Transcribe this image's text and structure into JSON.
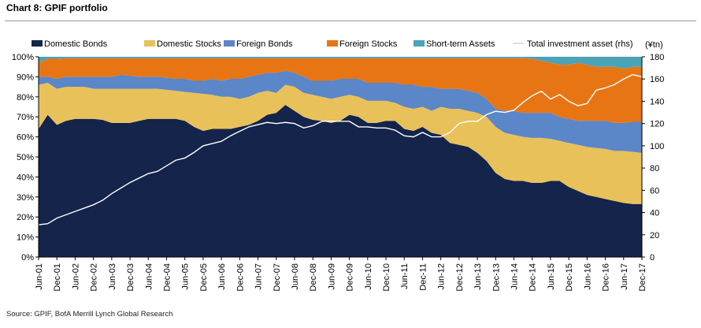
{
  "header": {
    "title": "Chart 8: GPIF portfolio",
    "source": "Source: GPIF, BofA Merrill Lynch Global Research"
  },
  "chart_data": {
    "type": "area",
    "title": "Chart 8: GPIF portfolio",
    "stacked": true,
    "x_tick_labels": [
      "Jun-01",
      "Dec-01",
      "Jun-02",
      "Dec-02",
      "Jun-03",
      "Dec-03",
      "Jun-04",
      "Dec-04",
      "Jun-05",
      "Dec-05",
      "Jun-06",
      "Dec-06",
      "Jun-07",
      "Dec-07",
      "Jun-08",
      "Dec-08",
      "Jun-09",
      "Dec-09",
      "Jun-10",
      "Dec-10",
      "Jun-11",
      "Dec-11",
      "Jun-12",
      "Dec-12",
      "Jun-13",
      "Dec-13",
      "Jun-14",
      "Dec-14",
      "Jun-15",
      "Dec-15",
      "Jun-16",
      "Dec-16",
      "Jun-17",
      "Dec-17"
    ],
    "x_quarter_count": 67,
    "y_left": {
      "min": 0,
      "max": 100,
      "step": 10,
      "tick_suffix": "%"
    },
    "y_right": {
      "min": 0,
      "max": 180,
      "step": 20,
      "unit_label": "(¥tn)"
    },
    "series": [
      {
        "name": "Domestic Bonds",
        "axis": "left",
        "color": "#14244a",
        "values": [
          64,
          71,
          66,
          68,
          69,
          69,
          69,
          68.5,
          67,
          67,
          67,
          68,
          69,
          69,
          69,
          69,
          68,
          65,
          63,
          64,
          64,
          64,
          65,
          66,
          68,
          71,
          72,
          76,
          73,
          70,
          68.5,
          68,
          67,
          68,
          71,
          70,
          67,
          67,
          68,
          68,
          64,
          63,
          65,
          62,
          61,
          57,
          56,
          55,
          52,
          48,
          42,
          39,
          38,
          38,
          37,
          37,
          38,
          38,
          35,
          33,
          31,
          30,
          29,
          28,
          27,
          26.5,
          26.5
        ]
      },
      {
        "name": "Domestic Stocks",
        "axis": "left",
        "color": "#e8c15a",
        "values": [
          86,
          87,
          84,
          85,
          85,
          85,
          84,
          84,
          84,
          84,
          84,
          84,
          84,
          84,
          83.5,
          83,
          82.5,
          82,
          81.5,
          81,
          80,
          80,
          79,
          80,
          82,
          83,
          82,
          86,
          85,
          82,
          81,
          80,
          79,
          80,
          81,
          80,
          78,
          78,
          78,
          77,
          75,
          74,
          75,
          73,
          75,
          74,
          74,
          73,
          72,
          70,
          65,
          62,
          61,
          60,
          59.5,
          59.5,
          59,
          58,
          57,
          56,
          55,
          54.5,
          54,
          53,
          53,
          52.5,
          52
        ]
      },
      {
        "name": "Foreign Bonds",
        "axis": "left",
        "color": "#5b86c7",
        "values": [
          90,
          90,
          89,
          90,
          90,
          90,
          90,
          90,
          90,
          91,
          90.5,
          90,
          90,
          90,
          89.5,
          89,
          89,
          88,
          88,
          89,
          88,
          89,
          89,
          90,
          91,
          92,
          92,
          93,
          92,
          90,
          88,
          88,
          88,
          89,
          89,
          89,
          87,
          87,
          87,
          87,
          86,
          86,
          85,
          85,
          84,
          84,
          84,
          83,
          82,
          79,
          74,
          73,
          73,
          72,
          72,
          72,
          72,
          70,
          69,
          68,
          68,
          68,
          68,
          67,
          67,
          67.5,
          67.5
        ]
      },
      {
        "name": "Foreign Stocks",
        "axis": "left",
        "color": "#e87514",
        "values": [
          97,
          99,
          99,
          99.3,
          99.3,
          99.3,
          99.3,
          99.3,
          99.3,
          99.3,
          99.3,
          99.3,
          99.3,
          99.3,
          99.3,
          99.3,
          99.3,
          99.3,
          99.3,
          99.3,
          99.3,
          99.3,
          99.3,
          99.3,
          99.3,
          99.3,
          99.3,
          99.3,
          99.3,
          99.3,
          99.3,
          99.3,
          99.3,
          99.3,
          99.3,
          99.3,
          99.3,
          99.3,
          99.3,
          99.3,
          99.3,
          99.3,
          99.3,
          99.3,
          99.3,
          99.3,
          99.3,
          99.3,
          99.3,
          99.3,
          99.3,
          99.3,
          99.3,
          99.3,
          99,
          98,
          97,
          96,
          96,
          97,
          96,
          95,
          95,
          95,
          94,
          95,
          95
        ]
      },
      {
        "name": "Short-term Assets",
        "axis": "left",
        "color": "#4aa3b6",
        "values": [
          100,
          100,
          100,
          100,
          100,
          100,
          100,
          100,
          100,
          100,
          100,
          100,
          100,
          100,
          100,
          100,
          100,
          100,
          100,
          100,
          100,
          100,
          100,
          100,
          100,
          100,
          100,
          100,
          100,
          100,
          100,
          100,
          100,
          100,
          100,
          100,
          100,
          100,
          100,
          100,
          100,
          100,
          100,
          100,
          100,
          100,
          100,
          100,
          100,
          100,
          100,
          100,
          100,
          100,
          100,
          100,
          100,
          100,
          100,
          100,
          100,
          100,
          100,
          100,
          100,
          100,
          100
        ]
      },
      {
        "name": "Total investment asset (rhs)",
        "axis": "right",
        "type": "line",
        "color": "#ffffff",
        "values": [
          29,
          30,
          35,
          38,
          41,
          44,
          47,
          51,
          57,
          62,
          67,
          71,
          75,
          77,
          82,
          87,
          89,
          94,
          100,
          102,
          104,
          109,
          113,
          117,
          119,
          121,
          120,
          121,
          120,
          116,
          118,
          122,
          122,
          122,
          122,
          117,
          117,
          116,
          116,
          114,
          109,
          108,
          112,
          108,
          108,
          112,
          120,
          122,
          122,
          128,
          131,
          130,
          132,
          139,
          145,
          149,
          142,
          146,
          140,
          136,
          138,
          150,
          152,
          155,
          160,
          164,
          162
        ]
      }
    ],
    "legend": {
      "position": "top",
      "labels": [
        "Domestic Bonds",
        "Domestic Stocks",
        "Foreign Bonds",
        "Foreign Stocks",
        "Short-term Assets",
        "Total investment asset (rhs)"
      ]
    },
    "grid": false
  }
}
